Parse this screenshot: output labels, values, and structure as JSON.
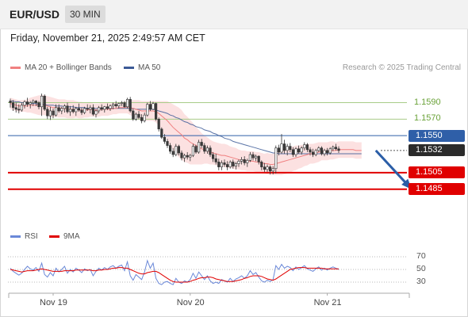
{
  "header": {
    "symbol": "EUR/USD",
    "timeframe": "30 MIN"
  },
  "timestamp": "Friday, November 21, 2025 2:49:57 AM CET",
  "legend": {
    "ma20": "MA 20 + Bollinger Bands",
    "ma50": "MA 50",
    "rsi": "RSI",
    "ma9": "9MA"
  },
  "credit": "Research © 2025 Trading Central",
  "colors": {
    "green": "#6aa238",
    "blue": "#2f5fa8",
    "red": "#e00000",
    "dark": "#2b2b2b",
    "band": "#fbdada",
    "ma20": "#f08080",
    "ma50": "#3c5a96",
    "rsi": "#6a88d8"
  },
  "chart_data": {
    "type": "candlestick",
    "ylim": [
      1.1478,
      1.1604
    ],
    "x_ticks": [
      {
        "label": "Nov 19",
        "index": 15
      },
      {
        "label": "Nov 20",
        "index": 63
      },
      {
        "label": "Nov 21",
        "index": 111
      }
    ],
    "levels": [
      {
        "label": "1.1590",
        "value": 1.159,
        "kind": "green"
      },
      {
        "label": "1.1570",
        "value": 1.157,
        "kind": "green"
      },
      {
        "label": "1.1550",
        "value": 1.155,
        "kind": "blue"
      },
      {
        "label": "1.1532",
        "value": 1.1532,
        "kind": "current"
      },
      {
        "label": "1.1505",
        "value": 1.1505,
        "kind": "red"
      },
      {
        "label": "1.1485",
        "value": 1.1485,
        "kind": "red"
      }
    ],
    "arrow": {
      "from_index": 128,
      "from": 1.1532,
      "to_index": 140,
      "to": 1.1487
    },
    "candles": [
      [
        1.1592,
        1.1595,
        1.1584,
        1.159
      ],
      [
        1.159,
        1.1593,
        1.158,
        1.1584
      ],
      [
        1.1584,
        1.159,
        1.1578,
        1.1582
      ],
      [
        1.1582,
        1.1588,
        1.1577,
        1.1581
      ],
      [
        1.1581,
        1.159,
        1.1579,
        1.1587
      ],
      [
        1.1587,
        1.1593,
        1.1583,
        1.1591
      ],
      [
        1.1591,
        1.1596,
        1.1585,
        1.1588
      ],
      [
        1.1588,
        1.1592,
        1.1583,
        1.159
      ],
      [
        1.159,
        1.1594,
        1.1586,
        1.1592
      ],
      [
        1.1592,
        1.1593,
        1.1586,
        1.159
      ],
      [
        1.159,
        1.1592,
        1.1582,
        1.1585
      ],
      [
        1.1585,
        1.1601,
        1.1574,
        1.1598
      ],
      [
        1.1598,
        1.16,
        1.158,
        1.1582
      ],
      [
        1.1582,
        1.1585,
        1.157,
        1.1574
      ],
      [
        1.1574,
        1.1585,
        1.1569,
        1.158
      ],
      [
        1.158,
        1.1583,
        1.1571,
        1.1575
      ],
      [
        1.1575,
        1.1588,
        1.1573,
        1.1584
      ],
      [
        1.1584,
        1.1588,
        1.1578,
        1.158
      ],
      [
        1.158,
        1.1585,
        1.1576,
        1.1583
      ],
      [
        1.1583,
        1.1588,
        1.1578,
        1.1586
      ],
      [
        1.1586,
        1.159,
        1.1577,
        1.1579
      ],
      [
        1.1579,
        1.1586,
        1.1574,
        1.1582
      ],
      [
        1.1582,
        1.1587,
        1.1577,
        1.1579
      ],
      [
        1.1579,
        1.1585,
        1.1574,
        1.1583
      ],
      [
        1.1583,
        1.1589,
        1.1579,
        1.1581
      ],
      [
        1.1581,
        1.1584,
        1.1575,
        1.1578
      ],
      [
        1.1578,
        1.1585,
        1.1576,
        1.1583
      ],
      [
        1.1583,
        1.1588,
        1.158,
        1.1582
      ],
      [
        1.1582,
        1.1587,
        1.1577,
        1.1584
      ],
      [
        1.1584,
        1.1588,
        1.1574,
        1.1576
      ],
      [
        1.1576,
        1.1582,
        1.1572,
        1.158
      ],
      [
        1.158,
        1.1586,
        1.1577,
        1.1584
      ],
      [
        1.1584,
        1.1588,
        1.158,
        1.1582
      ],
      [
        1.1582,
        1.1586,
        1.1578,
        1.1585
      ],
      [
        1.1585,
        1.1589,
        1.1581,
        1.1583
      ],
      [
        1.1583,
        1.1588,
        1.158,
        1.1586
      ],
      [
        1.1586,
        1.159,
        1.1582,
        1.1588
      ],
      [
        1.1588,
        1.1592,
        1.1584,
        1.1586
      ],
      [
        1.1586,
        1.159,
        1.1583,
        1.1589
      ],
      [
        1.1589,
        1.1592,
        1.1586,
        1.159
      ],
      [
        1.159,
        1.1592,
        1.1584,
        1.1585
      ],
      [
        1.1585,
        1.1596,
        1.1583,
        1.1594
      ],
      [
        1.1594,
        1.1597,
        1.1578,
        1.158
      ],
      [
        1.158,
        1.1583,
        1.1568,
        1.157
      ],
      [
        1.157,
        1.1578,
        1.1568,
        1.1576
      ],
      [
        1.1576,
        1.158,
        1.157,
        1.1572
      ],
      [
        1.1572,
        1.1576,
        1.1565,
        1.1568
      ],
      [
        1.1568,
        1.1578,
        1.1566,
        1.1575
      ],
      [
        1.1575,
        1.159,
        1.1573,
        1.1588
      ],
      [
        1.1588,
        1.1592,
        1.158,
        1.1582
      ],
      [
        1.1582,
        1.1591,
        1.1581,
        1.1589
      ],
      [
        1.1589,
        1.159,
        1.1568,
        1.157
      ],
      [
        1.157,
        1.1572,
        1.1555,
        1.1558
      ],
      [
        1.1558,
        1.156,
        1.1546,
        1.1548
      ],
      [
        1.1548,
        1.1552,
        1.154,
        1.1543
      ],
      [
        1.1543,
        1.1546,
        1.1535,
        1.1538
      ],
      [
        1.1538,
        1.1541,
        1.1528,
        1.1531
      ],
      [
        1.1531,
        1.1535,
        1.1524,
        1.1527
      ],
      [
        1.1527,
        1.154,
        1.1525,
        1.1537
      ],
      [
        1.1537,
        1.1539,
        1.1526,
        1.1529
      ],
      [
        1.1529,
        1.1532,
        1.152,
        1.1523
      ],
      [
        1.1523,
        1.1528,
        1.1518,
        1.1526
      ],
      [
        1.1526,
        1.153,
        1.1521,
        1.1524
      ],
      [
        1.1524,
        1.1528,
        1.1519,
        1.1526
      ],
      [
        1.1526,
        1.154,
        1.1524,
        1.1537
      ],
      [
        1.1537,
        1.1539,
        1.1528,
        1.153
      ],
      [
        1.153,
        1.1545,
        1.1528,
        1.1542
      ],
      [
        1.1542,
        1.1546,
        1.1535,
        1.1538
      ],
      [
        1.1538,
        1.1541,
        1.1528,
        1.1531
      ],
      [
        1.1531,
        1.1538,
        1.1528,
        1.1535
      ],
      [
        1.1535,
        1.1538,
        1.1524,
        1.1527
      ],
      [
        1.1527,
        1.153,
        1.1518,
        1.1522
      ],
      [
        1.1522,
        1.1528,
        1.1515,
        1.1518
      ],
      [
        1.1518,
        1.1522,
        1.1508,
        1.1512
      ],
      [
        1.1512,
        1.152,
        1.1508,
        1.1517
      ],
      [
        1.1517,
        1.1521,
        1.1512,
        1.1515
      ],
      [
        1.1515,
        1.1519,
        1.1508,
        1.1512
      ],
      [
        1.1512,
        1.152,
        1.151,
        1.1518
      ],
      [
        1.1518,
        1.1521,
        1.151,
        1.1513
      ],
      [
        1.1513,
        1.1518,
        1.1509,
        1.1516
      ],
      [
        1.1516,
        1.1521,
        1.1512,
        1.1519
      ],
      [
        1.1519,
        1.1524,
        1.1515,
        1.1521
      ],
      [
        1.1521,
        1.1525,
        1.1514,
        1.1517
      ],
      [
        1.1517,
        1.1522,
        1.1512,
        1.152
      ],
      [
        1.152,
        1.153,
        1.1518,
        1.1527
      ],
      [
        1.1527,
        1.153,
        1.152,
        1.1523
      ],
      [
        1.1523,
        1.1527,
        1.1519,
        1.1525
      ],
      [
        1.1525,
        1.1526,
        1.1515,
        1.1518
      ],
      [
        1.1518,
        1.152,
        1.1508,
        1.1512
      ],
      [
        1.1512,
        1.1517,
        1.1506,
        1.1509
      ],
      [
        1.1509,
        1.1515,
        1.1506,
        1.1512
      ],
      [
        1.1512,
        1.1514,
        1.1503,
        1.1507
      ],
      [
        1.1507,
        1.1513,
        1.1503,
        1.151
      ],
      [
        1.151,
        1.1538,
        1.1504,
        1.1535
      ],
      [
        1.1535,
        1.1539,
        1.1526,
        1.153
      ],
      [
        1.153,
        1.1552,
        1.1528,
        1.154
      ],
      [
        1.154,
        1.1545,
        1.1528,
        1.1532
      ],
      [
        1.1532,
        1.154,
        1.1526,
        1.1537
      ],
      [
        1.1537,
        1.1541,
        1.153,
        1.1533
      ],
      [
        1.1533,
        1.1536,
        1.1524,
        1.1527
      ],
      [
        1.1527,
        1.1536,
        1.1524,
        1.1534
      ],
      [
        1.1534,
        1.1538,
        1.1528,
        1.153
      ],
      [
        1.153,
        1.1537,
        1.1527,
        1.1535
      ],
      [
        1.1535,
        1.1542,
        1.1532,
        1.1539
      ],
      [
        1.1539,
        1.1541,
        1.153,
        1.1533
      ],
      [
        1.1533,
        1.1536,
        1.1526,
        1.153
      ],
      [
        1.153,
        1.1534,
        1.1524,
        1.1527
      ],
      [
        1.1527,
        1.1534,
        1.1525,
        1.1532
      ],
      [
        1.1532,
        1.1537,
        1.153,
        1.1535
      ],
      [
        1.1535,
        1.1537,
        1.1526,
        1.1528
      ],
      [
        1.1528,
        1.1534,
        1.1525,
        1.1532
      ],
      [
        1.1532,
        1.1535,
        1.1526,
        1.1529
      ],
      [
        1.1529,
        1.1536,
        1.1527,
        1.1534
      ],
      [
        1.1534,
        1.1538,
        1.1531,
        1.1536
      ],
      [
        1.1536,
        1.154,
        1.1532,
        1.1534
      ],
      [
        1.1534,
        1.1537,
        1.1529,
        1.1532
      ]
    ],
    "ma20": [
      1.1589,
      1.1588,
      1.1587,
      1.1586,
      1.1586,
      1.1586,
      1.1586,
      1.1587,
      1.1587,
      1.1587,
      1.1587,
      1.1587,
      1.1587,
      1.1586,
      1.1585,
      1.1584,
      1.1584,
      1.1583,
      1.1583,
      1.1583,
      1.1582,
      1.1582,
      1.1582,
      1.1582,
      1.1581,
      1.1581,
      1.1581,
      1.1581,
      1.1582,
      1.1581,
      1.1581,
      1.1581,
      1.1582,
      1.1582,
      1.1582,
      1.1582,
      1.1583,
      1.1583,
      1.1584,
      1.1584,
      1.1584,
      1.1585,
      1.1584,
      1.1583,
      1.1582,
      1.1581,
      1.158,
      1.158,
      1.158,
      1.158,
      1.158,
      1.1579,
      1.1577,
      1.1574,
      1.1571,
      1.1568,
      1.1564,
      1.156,
      1.1557,
      1.1554,
      1.1551,
      1.1547,
      1.1545,
      1.1542,
      1.154,
      1.1538,
      1.1536,
      1.1534,
      1.1533,
      1.1532,
      1.153,
      1.1529,
      1.1528,
      1.1527,
      1.1526,
      1.1526,
      1.1525,
      1.1524,
      1.1523,
      1.1522,
      1.1521,
      1.152,
      1.152,
      1.1519,
      1.1519,
      1.1519,
      1.1518,
      1.1518,
      1.1517,
      1.1516,
      1.1516,
      1.1515,
      1.1515,
      1.1516,
      1.1517,
      1.1518,
      1.1519,
      1.152,
      1.1521,
      1.1522,
      1.1523,
      1.1524,
      1.1525,
      1.1526,
      1.1527,
      1.1528,
      1.1528,
      1.1529,
      1.153,
      1.1531,
      1.1531,
      1.1531,
      1.1532,
      1.1532,
      1.1532,
      1.1533,
      1.1533,
      1.1533,
      1.1533,
      1.1533,
      1.1533,
      1.1532,
      1.1532,
      1.1532
    ],
    "ma50": [
      1.1592,
      1.1592,
      1.1591,
      1.1591,
      1.159,
      1.159,
      1.159,
      1.1589,
      1.1589,
      1.1589,
      1.1588,
      1.1588,
      1.1588,
      1.1587,
      1.1587,
      1.1587,
      1.1586,
      1.1586,
      1.1586,
      1.1585,
      1.1585,
      1.1585,
      1.1585,
      1.1584,
      1.1584,
      1.1584,
      1.1584,
      1.1583,
      1.1583,
      1.1583,
      1.1583,
      1.1583,
      1.1583,
      1.1583,
      1.1583,
      1.1583,
      1.1583,
      1.1583,
      1.1583,
      1.1583,
      1.1583,
      1.1583,
      1.1583,
      1.1583,
      1.1582,
      1.1582,
      1.1582,
      1.1582,
      1.1582,
      1.1582,
      1.1582,
      1.1581,
      1.158,
      1.1579,
      1.1578,
      1.1577,
      1.1575,
      1.1574,
      1.1572,
      1.1571,
      1.1569,
      1.1567,
      1.1566,
      1.1564,
      1.1563,
      1.1561,
      1.156,
      1.1559,
      1.1557,
      1.1556,
      1.1555,
      1.1553,
      1.1552,
      1.155,
      1.1549,
      1.1547,
      1.1546,
      1.1545,
      1.1543,
      1.1542,
      1.1541,
      1.154,
      1.1539,
      1.1538,
      1.1537,
      1.1536,
      1.1535,
      1.1534,
      1.1533,
      1.1532,
      1.1531,
      1.153,
      1.1529,
      1.1529,
      1.1528,
      1.1528,
      1.1528,
      1.1528,
      1.1528,
      1.1528,
      1.1528,
      1.1528,
      1.1528,
      1.1528,
      1.1528,
      1.1528,
      1.1528,
      1.1528,
      1.1528,
      1.1528,
      1.1528,
      1.1528,
      1.1528,
      1.1528,
      1.1528,
      1.1528,
      1.1528,
      1.1528,
      1.1528,
      1.1528,
      1.1528,
      1.1528,
      1.1528,
      1.1528
    ],
    "bb_halfwidth": [
      0.0007,
      0.0007,
      0.0007,
      0.0007,
      0.0007,
      0.0007,
      0.0008,
      0.0009,
      0.001,
      0.0011,
      0.0012,
      0.0012,
      0.0012,
      0.0012,
      0.0012,
      0.0012,
      0.0011,
      0.0011,
      0.0011,
      0.0011,
      0.0011,
      0.0011,
      0.0011,
      0.001,
      0.001,
      0.001,
      0.0009,
      0.0009,
      0.0009,
      0.0008,
      0.0008,
      0.0008,
      0.0008,
      0.0008,
      0.0008,
      0.0007,
      0.0007,
      0.0007,
      0.0007,
      0.0007,
      0.0007,
      0.0008,
      0.0009,
      0.001,
      0.0011,
      0.0012,
      0.0012,
      0.0012,
      0.0012,
      0.0012,
      0.0012,
      0.0013,
      0.0015,
      0.0018,
      0.0021,
      0.0024,
      0.0026,
      0.0028,
      0.0029,
      0.003,
      0.003,
      0.0029,
      0.0028,
      0.0027,
      0.0025,
      0.0023,
      0.0021,
      0.0019,
      0.0017,
      0.0016,
      0.0015,
      0.0014,
      0.0014,
      0.0014,
      0.0014,
      0.0014,
      0.0014,
      0.0013,
      0.0013,
      0.0013,
      0.0012,
      0.0012,
      0.0012,
      0.0012,
      0.0012,
      0.0012,
      0.0012,
      0.0012,
      0.0012,
      0.0012,
      0.0013,
      0.0013,
      0.0013,
      0.0014,
      0.0015,
      0.0016,
      0.0016,
      0.0016,
      0.0016,
      0.0015,
      0.0015,
      0.0014,
      0.0014,
      0.0013,
      0.0013,
      0.0012,
      0.0012,
      0.0012,
      0.0012,
      0.0011,
      0.0011,
      0.0011,
      0.0011,
      0.0011,
      0.001,
      0.001,
      0.001,
      0.001,
      0.001,
      0.001,
      0.001,
      0.001,
      0.001,
      0.001,
      0.001,
      0.001
    ],
    "rsi": {
      "ticks": [
        {
          "label": "70",
          "value": 70
        },
        {
          "label": "50",
          "value": 50
        },
        {
          "label": "30",
          "value": 30
        }
      ],
      "ylim": [
        20,
        80
      ],
      "rsi": [
        52,
        47,
        44,
        41,
        44,
        50,
        55,
        51,
        49,
        53,
        47,
        60,
        42,
        38,
        45,
        40,
        52,
        46,
        50,
        55,
        44,
        50,
        46,
        52,
        49,
        45,
        51,
        48,
        50,
        40,
        47,
        52,
        49,
        53,
        50,
        54,
        56,
        52,
        55,
        57,
        48,
        62,
        40,
        33,
        42,
        38,
        34,
        46,
        64,
        52,
        60,
        36,
        28,
        26,
        30,
        31,
        28,
        26,
        36,
        30,
        28,
        32,
        30,
        34,
        44,
        36,
        46,
        40,
        34,
        40,
        32,
        28,
        30,
        28,
        34,
        32,
        30,
        36,
        31,
        35,
        37,
        40,
        36,
        40,
        48,
        42,
        45,
        38,
        32,
        30,
        33,
        31,
        34,
        56,
        50,
        58,
        52,
        55,
        53,
        48,
        54,
        50,
        53,
        56,
        51,
        49,
        47,
        51,
        54,
        49,
        52,
        49,
        52,
        54,
        52,
        50
      ],
      "ma9": [
        50,
        49,
        48,
        47,
        46,
        47,
        48,
        48,
        48,
        49,
        50,
        51,
        50,
        49,
        48,
        47,
        47,
        47,
        47,
        48,
        48,
        48,
        48,
        49,
        49,
        49,
        49,
        49,
        49,
        48,
        48,
        49,
        49,
        50,
        50,
        51,
        52,
        52,
        53,
        53,
        52,
        52,
        50,
        48,
        46,
        44,
        43,
        43,
        45,
        46,
        47,
        47,
        45,
        42,
        39,
        36,
        33,
        31,
        30,
        30,
        30,
        30,
        30,
        31,
        33,
        34,
        36,
        37,
        37,
        38,
        38,
        37,
        35,
        34,
        33,
        32,
        31,
        31,
        31,
        32,
        33,
        34,
        36,
        37,
        39,
        40,
        40,
        40,
        39,
        37,
        35,
        34,
        33,
        35,
        38,
        41,
        44,
        47,
        50,
        51,
        52,
        53,
        53,
        53,
        52,
        52,
        52,
        52,
        52,
        52,
        51,
        51,
        51,
        51,
        51,
        51
      ]
    }
  }
}
